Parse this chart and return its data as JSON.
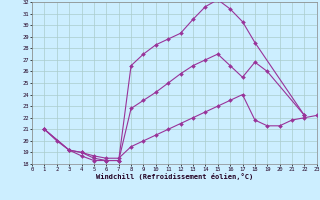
{
  "xlabel": "Windchill (Refroidissement éolien,°C)",
  "bg_color": "#cceeff",
  "line_color": "#993399",
  "grid_color": "#aacccc",
  "xlim": [
    0,
    23
  ],
  "ylim": [
    18,
    32
  ],
  "xticks": [
    0,
    1,
    2,
    3,
    4,
    5,
    6,
    7,
    8,
    9,
    10,
    11,
    12,
    13,
    14,
    15,
    16,
    17,
    18,
    19,
    20,
    21,
    22,
    23
  ],
  "yticks": [
    18,
    19,
    20,
    21,
    22,
    23,
    24,
    25,
    26,
    27,
    28,
    29,
    30,
    31,
    32
  ],
  "line1_x": [
    1,
    2,
    3,
    4,
    5,
    6,
    7,
    8,
    9,
    10,
    11,
    12,
    13,
    14,
    15,
    16,
    17,
    18,
    22
  ],
  "line1_y": [
    21.0,
    20.0,
    19.2,
    18.7,
    18.3,
    18.3,
    18.3,
    26.5,
    27.5,
    28.3,
    28.8,
    29.3,
    30.5,
    31.6,
    32.2,
    31.4,
    30.3,
    28.5,
    22.2
  ],
  "line2_x": [
    1,
    3,
    4,
    5,
    6,
    7,
    8,
    9,
    10,
    11,
    12,
    13,
    14,
    15,
    16,
    17,
    18,
    19,
    22
  ],
  "line2_y": [
    21.0,
    19.2,
    19.0,
    18.5,
    18.3,
    18.3,
    22.8,
    23.5,
    24.2,
    25.0,
    25.8,
    26.5,
    27.0,
    27.5,
    26.5,
    25.5,
    26.8,
    26.0,
    22.2
  ],
  "line3_x": [
    1,
    3,
    4,
    5,
    6,
    7,
    8,
    9,
    10,
    11,
    12,
    13,
    14,
    15,
    16,
    17,
    18,
    19,
    20,
    21,
    22,
    23
  ],
  "line3_y": [
    21.0,
    19.2,
    19.0,
    18.7,
    18.5,
    18.5,
    19.5,
    20.0,
    20.5,
    21.0,
    21.5,
    22.0,
    22.5,
    23.0,
    23.5,
    24.0,
    21.8,
    21.3,
    21.3,
    21.8,
    22.0,
    22.2
  ]
}
